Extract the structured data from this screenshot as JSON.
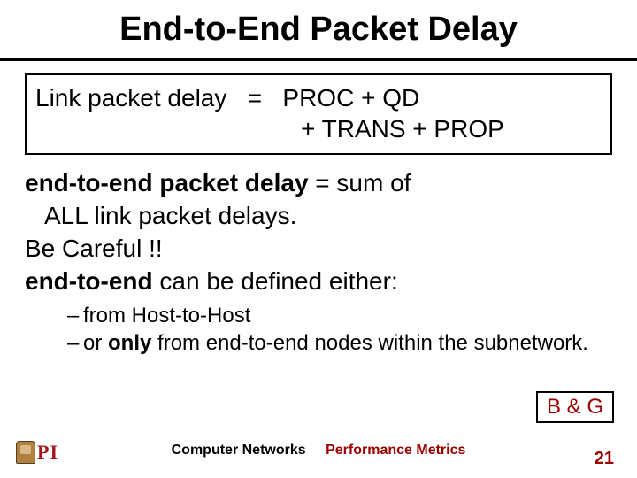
{
  "title": "End-to-End Packet Delay",
  "formula": {
    "lhs": "Link packet delay",
    "eq": "=",
    "rhs1": "PROC + QD",
    "rhs2": "+ TRANS + PROP"
  },
  "body": {
    "l1a": "end-to-end packet delay",
    "l1b": "  =  sum of",
    "l2": "ALL link packet delays.",
    "l3": "Be Careful !!",
    "l4a": "end-to-end",
    "l4b": " can be defined either:"
  },
  "bullets": [
    {
      "dash": "–",
      "text": "from Host-to-Host"
    },
    {
      "dash": "–",
      "text_a": "or ",
      "only": "only",
      "text_b": " from end-to-end nodes within the subnetwork."
    }
  ],
  "bg_label": "B & G",
  "footer": {
    "left_logo_text": "PI",
    "center_a": "Computer Networks",
    "center_b": "Performance Metrics",
    "page": "21"
  },
  "colors": {
    "accent": "#990000",
    "text": "#000000"
  }
}
